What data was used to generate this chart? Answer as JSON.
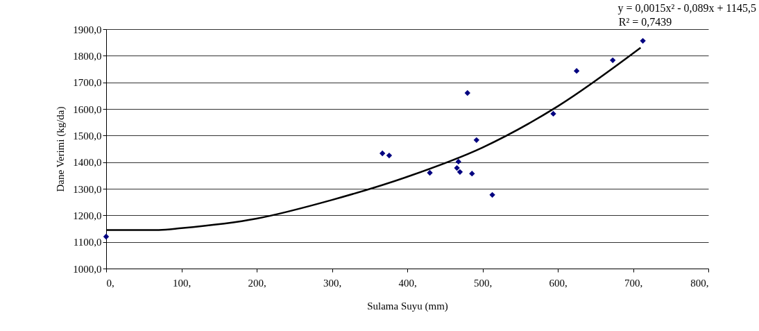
{
  "chart_data": {
    "type": "scatter",
    "xlabel": "Sulama Suyu (mm)",
    "ylabel": "Dane Verimi (kg/da)",
    "x": [
      0,
      367,
      376,
      430,
      466,
      468,
      470,
      480,
      486,
      492,
      513,
      594,
      625,
      673,
      713
    ],
    "values": [
      1120,
      1433,
      1425,
      1360,
      1378,
      1402,
      1363,
      1660,
      1357,
      1483,
      1277,
      1582,
      1743,
      1783,
      1856
    ],
    "color": "#000080",
    "marker": "diamond",
    "series": [
      {
        "type": "line",
        "color": "#000000",
        "marker": "none",
        "x": [
          0,
          70,
          100,
          200,
          300,
          400,
          500,
          600,
          710
        ],
        "values": [
          1145,
          1145,
          1152,
          1188,
          1258,
          1345,
          1455,
          1610,
          1830
        ]
      }
    ],
    "xlim": [
      0,
      800
    ],
    "xticks": [
      {
        "value": 0,
        "label": "0,"
      },
      {
        "value": 100,
        "label": "100,"
      },
      {
        "value": 200,
        "label": "200,"
      },
      {
        "value": 300,
        "label": "300,"
      },
      {
        "value": 400,
        "label": "400,"
      },
      {
        "value": 500,
        "label": "500,"
      },
      {
        "value": 600,
        "label": "600,"
      },
      {
        "value": 700,
        "label": "700,"
      },
      {
        "value": 800,
        "label": "800,"
      }
    ],
    "ylim": [
      1000,
      1900
    ],
    "yticks": [
      {
        "value": 1000,
        "label": "1000,0"
      },
      {
        "value": 1100,
        "label": "1100,0"
      },
      {
        "value": 1200,
        "label": "1200,0"
      },
      {
        "value": 1300,
        "label": "1300,0"
      },
      {
        "value": 1400,
        "label": "1400,0"
      },
      {
        "value": 1500,
        "label": "1500,0"
      },
      {
        "value": 1600,
        "label": "1600,0"
      },
      {
        "value": 1700,
        "label": "1700,0"
      },
      {
        "value": 1800,
        "label": "1800,0"
      },
      {
        "value": 1900,
        "label": "1900,0"
      }
    ],
    "grid": "y",
    "annotations": [
      "y = 0,0015x² - 0,089x + 1145,5",
      "R² = 0,7439"
    ]
  }
}
